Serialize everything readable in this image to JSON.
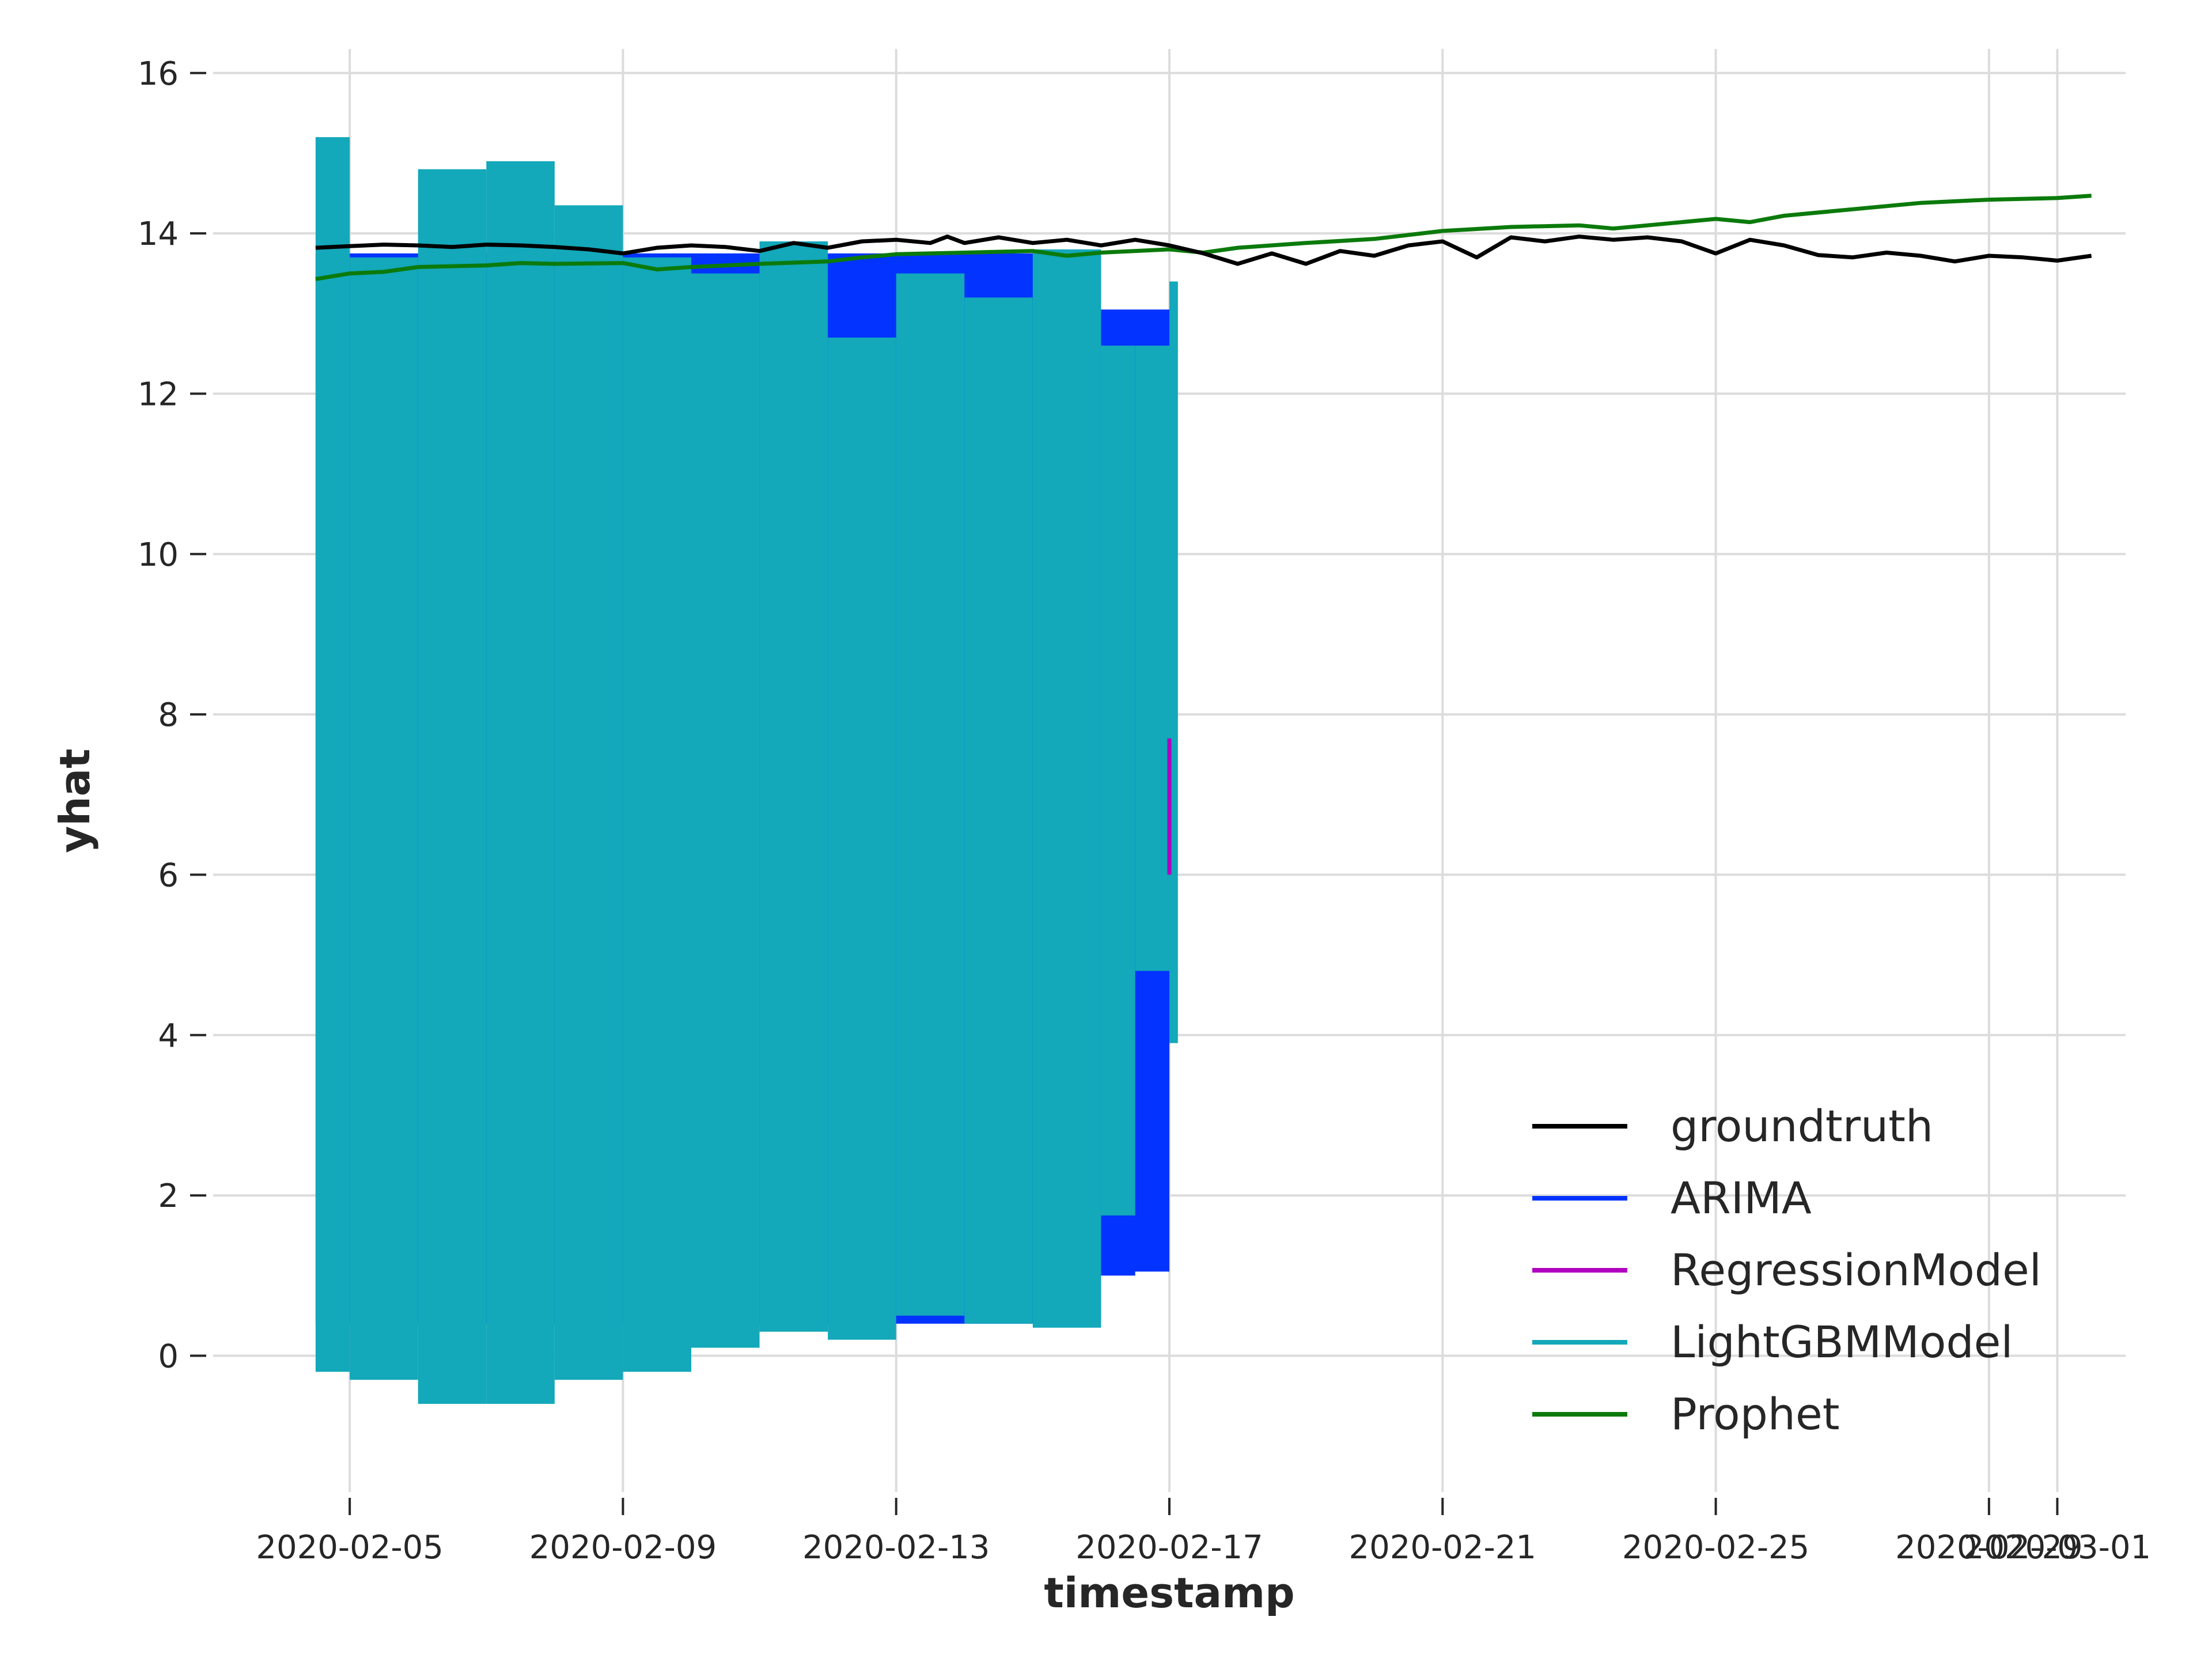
{
  "chart_data": {
    "type": "line",
    "title": "",
    "xlabel": "timestamp",
    "ylabel": "yhat",
    "x_axis": {
      "type": "date",
      "range": [
        "2020-02-03",
        "2020-03-02"
      ],
      "ticks": [
        "2020-02-05",
        "2020-02-09",
        "2020-02-13",
        "2020-02-17",
        "2020-02-21",
        "2020-02-25",
        "2020-02-29",
        "2020-03-01"
      ],
      "tick_labels": [
        "2020-02-05",
        "2020-02-09",
        "2020-02-13",
        "2020-02-17",
        "2020-02-21",
        "2020-02-25",
        "2020-02-29",
        "2020-03-01"
      ]
    },
    "y_axis": {
      "range": [
        -1.7,
        16.3
      ],
      "ticks": [
        0,
        2,
        4,
        6,
        8,
        10,
        12,
        14,
        16
      ],
      "tick_labels": [
        "0",
        "2",
        "4",
        "6",
        "8",
        "10",
        "12",
        "14",
        "16"
      ]
    },
    "grid": true,
    "legend": {
      "placement": "lower-right",
      "entries": [
        "groundtruth",
        "ARIMA",
        "RegressionModel",
        "LightGBMModel",
        "Prophet"
      ]
    },
    "series": [
      {
        "name": "groundtruth",
        "color": "#000000",
        "kind": "line",
        "points": [
          [
            "2020-02-04T12:00",
            13.82
          ],
          [
            "2020-02-05T00:00",
            13.84
          ],
          [
            "2020-02-05T12:00",
            13.86
          ],
          [
            "2020-02-06T00:00",
            13.85
          ],
          [
            "2020-02-06T12:00",
            13.83
          ],
          [
            "2020-02-07T00:00",
            13.86
          ],
          [
            "2020-02-07T12:00",
            13.85
          ],
          [
            "2020-02-08T00:00",
            13.83
          ],
          [
            "2020-02-08T12:00",
            13.8
          ],
          [
            "2020-02-09T00:00",
            13.75
          ],
          [
            "2020-02-09T12:00",
            13.82
          ],
          [
            "2020-02-10T00:00",
            13.85
          ],
          [
            "2020-02-10T12:00",
            13.83
          ],
          [
            "2020-02-11T00:00",
            13.78
          ],
          [
            "2020-02-11T12:00",
            13.88
          ],
          [
            "2020-02-12T00:00",
            13.82
          ],
          [
            "2020-02-12T12:00",
            13.9
          ],
          [
            "2020-02-13T00:00",
            13.92
          ],
          [
            "2020-02-13T12:00",
            13.88
          ],
          [
            "2020-02-13T18:00",
            13.96
          ],
          [
            "2020-02-14T00:00",
            13.88
          ],
          [
            "2020-02-14T12:00",
            13.95
          ],
          [
            "2020-02-15T00:00",
            13.88
          ],
          [
            "2020-02-15T12:00",
            13.92
          ],
          [
            "2020-02-16T00:00",
            13.85
          ],
          [
            "2020-02-16T12:00",
            13.92
          ],
          [
            "2020-02-17T00:00",
            13.85
          ],
          [
            "2020-02-17T12:00",
            13.75
          ],
          [
            "2020-02-18T00:00",
            13.62
          ],
          [
            "2020-02-18T12:00",
            13.75
          ],
          [
            "2020-02-19T00:00",
            13.62
          ],
          [
            "2020-02-19T12:00",
            13.78
          ],
          [
            "2020-02-20T00:00",
            13.72
          ],
          [
            "2020-02-20T12:00",
            13.85
          ],
          [
            "2020-02-21T00:00",
            13.9
          ],
          [
            "2020-02-21T12:00",
            13.7
          ],
          [
            "2020-02-22T00:00",
            13.95
          ],
          [
            "2020-02-22T12:00",
            13.9
          ],
          [
            "2020-02-23T00:00",
            13.96
          ],
          [
            "2020-02-23T12:00",
            13.92
          ],
          [
            "2020-02-24T00:00",
            13.95
          ],
          [
            "2020-02-24T12:00",
            13.9
          ],
          [
            "2020-02-25T00:00",
            13.75
          ],
          [
            "2020-02-25T12:00",
            13.92
          ],
          [
            "2020-02-26T00:00",
            13.85
          ],
          [
            "2020-02-26T12:00",
            13.73
          ],
          [
            "2020-02-27T00:00",
            13.7
          ],
          [
            "2020-02-27T12:00",
            13.76
          ],
          [
            "2020-02-28T00:00",
            13.72
          ],
          [
            "2020-02-28T12:00",
            13.65
          ],
          [
            "2020-02-29T00:00",
            13.72
          ],
          [
            "2020-02-29T12:00",
            13.7
          ],
          [
            "2020-03-01T00:00",
            13.66
          ],
          [
            "2020-03-01T12:00",
            13.72
          ]
        ]
      },
      {
        "name": "ARIMA",
        "color": "#0333ff",
        "kind": "band",
        "bands": [
          [
            "2020-02-04T12:00",
            "2020-02-16T00:00",
            0.4,
            13.75
          ],
          [
            "2020-02-16T00:00",
            "2020-02-16T12:00",
            1.0,
            1.75
          ],
          [
            "2020-02-16T00:00",
            "2020-02-17T00:00",
            1.05,
            13.05
          ],
          [
            "2020-02-16T12:00",
            "2020-02-17T00:00",
            4.8,
            13.0
          ]
        ]
      },
      {
        "name": "RegressionModel",
        "color": "#b000c0",
        "kind": "line",
        "points": [
          [
            "2020-02-17T00:00",
            6.0
          ],
          [
            "2020-02-17T00:00",
            7.7
          ]
        ]
      },
      {
        "name": "LightGBMModel",
        "color": "#13a8ba",
        "kind": "band",
        "bands": [
          [
            "2020-02-04T12:00",
            "2020-02-05T00:00",
            -0.2,
            15.2
          ],
          [
            "2020-02-05T00:00",
            "2020-02-06T00:00",
            -0.3,
            13.7
          ],
          [
            "2020-02-06T00:00",
            "2020-02-07T00:00",
            -0.6,
            14.8
          ],
          [
            "2020-02-07T00:00",
            "2020-02-08T00:00",
            -0.6,
            14.9
          ],
          [
            "2020-02-08T00:00",
            "2020-02-09T00:00",
            -0.3,
            14.35
          ],
          [
            "2020-02-09T00:00",
            "2020-02-10T00:00",
            -0.2,
            13.7
          ],
          [
            "2020-02-10T00:00",
            "2020-02-11T00:00",
            0.1,
            13.5
          ],
          [
            "2020-02-11T00:00",
            "2020-02-12T00:00",
            0.3,
            13.9
          ],
          [
            "2020-02-12T00:00",
            "2020-02-13T00:00",
            0.2,
            12.7
          ],
          [
            "2020-02-13T00:00",
            "2020-02-14T00:00",
            0.5,
            13.5
          ],
          [
            "2020-02-14T00:00",
            "2020-02-15T00:00",
            0.4,
            13.2
          ],
          [
            "2020-02-15T00:00",
            "2020-02-16T00:00",
            0.35,
            13.8
          ],
          [
            "2020-02-16T00:00",
            "2020-02-16T12:00",
            1.75,
            12.6
          ],
          [
            "2020-02-16T12:00",
            "2020-02-17T00:00",
            4.8,
            12.6
          ],
          [
            "2020-02-17T00:00",
            "2020-02-17T03:00",
            3.9,
            13.4
          ]
        ]
      },
      {
        "name": "Prophet",
        "color": "#0b7a0b",
        "kind": "line",
        "points": [
          [
            "2020-02-04T12:00",
            13.43
          ],
          [
            "2020-02-05T00:00",
            13.5
          ],
          [
            "2020-02-05T12:00",
            13.52
          ],
          [
            "2020-02-06T00:00",
            13.58
          ],
          [
            "2020-02-07T00:00",
            13.6
          ],
          [
            "2020-02-07T12:00",
            13.63
          ],
          [
            "2020-02-08T00:00",
            13.62
          ],
          [
            "2020-02-09T00:00",
            13.63
          ],
          [
            "2020-02-09T12:00",
            13.55
          ],
          [
            "2020-02-10T00:00",
            13.58
          ],
          [
            "2020-02-11T00:00",
            13.62
          ],
          [
            "2020-02-12T00:00",
            13.65
          ],
          [
            "2020-02-12T12:00",
            13.7
          ],
          [
            "2020-02-13T00:00",
            13.74
          ],
          [
            "2020-02-14T00:00",
            13.76
          ],
          [
            "2020-02-15T00:00",
            13.78
          ],
          [
            "2020-02-15T12:00",
            13.72
          ],
          [
            "2020-02-16T00:00",
            13.76
          ],
          [
            "2020-02-17T00:00",
            13.8
          ],
          [
            "2020-02-17T12:00",
            13.76
          ],
          [
            "2020-02-18T00:00",
            13.82
          ],
          [
            "2020-02-19T00:00",
            13.88
          ],
          [
            "2020-02-20T00:00",
            13.93
          ],
          [
            "2020-02-21T00:00",
            14.03
          ],
          [
            "2020-02-22T00:00",
            14.08
          ],
          [
            "2020-02-23T00:00",
            14.1
          ],
          [
            "2020-02-23T12:00",
            14.06
          ],
          [
            "2020-02-24T00:00",
            14.1
          ],
          [
            "2020-02-25T00:00",
            14.18
          ],
          [
            "2020-02-25T12:00",
            14.14
          ],
          [
            "2020-02-26T00:00",
            14.22
          ],
          [
            "2020-02-27T00:00",
            14.3
          ],
          [
            "2020-02-28T00:00",
            14.38
          ],
          [
            "2020-02-29T00:00",
            14.42
          ],
          [
            "2020-03-01T00:00",
            14.44
          ],
          [
            "2020-03-01T12:00",
            14.47
          ]
        ]
      }
    ]
  }
}
